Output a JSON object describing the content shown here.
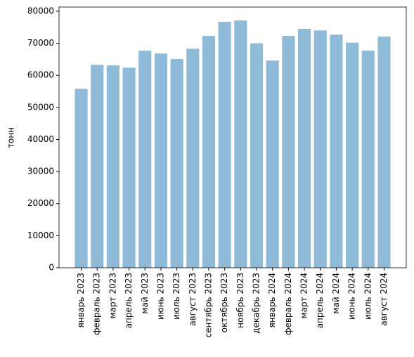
{
  "chart_data": {
    "type": "bar",
    "ylabel": "тонн",
    "categories": [
      "январь 2023",
      "февраль 2023",
      "март 2023",
      "апрель 2023",
      "май 2023",
      "июнь 2023",
      "июль 2023",
      "август 2023",
      "сентябрь 2023",
      "октябрь 2023",
      "ноябрь 2023",
      "декабрь 2023",
      "январь 2024",
      "февраль 2024",
      "март 2024",
      "апрель 2024",
      "май 2024",
      "июнь 2024",
      "июль 2024",
      "август 2024"
    ],
    "values": [
      55800,
      63300,
      63100,
      62400,
      67700,
      66800,
      65100,
      68300,
      72300,
      76700,
      77100,
      70000,
      64600,
      72300,
      74500,
      74000,
      72700,
      70200,
      67700,
      72100
    ],
    "color": "#8fbbd9",
    "ylim": [
      0,
      81300
    ],
    "yticks": [
      0,
      10000,
      20000,
      30000,
      40000,
      50000,
      60000,
      70000,
      80000
    ],
    "grid": false
  }
}
